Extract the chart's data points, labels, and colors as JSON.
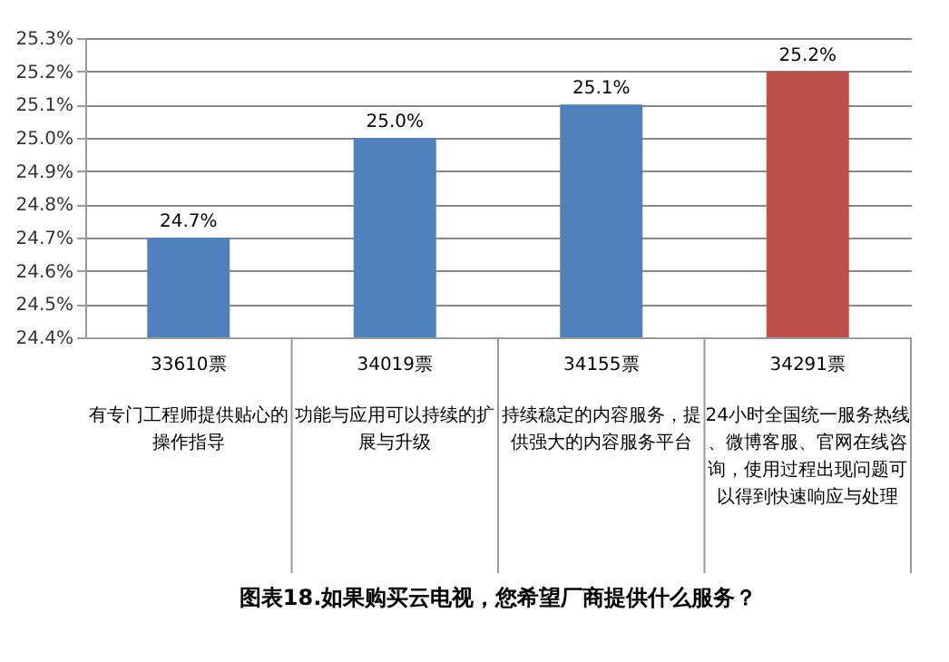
{
  "chart_data": {
    "type": "bar",
    "title": "图表18.如果购买云电视，您希望厂商提供什么服务？",
    "categories": [
      "有专门工程师提供贴心的操作指导",
      "功能与应用可以持续的扩展与升级",
      "持续稳定的内容服务，提供强大的内容服务平台",
      "24小时全国统一服务热线、微博客服、官网在线咨询，使用过程出现问题可以得到快速响应与处理"
    ],
    "annotations": [
      "33610票",
      "34019票",
      "34155票",
      "34291票"
    ],
    "values": [
      24.7,
      25.0,
      25.1,
      25.2
    ],
    "colors": [
      "#4f81bd",
      "#4f81bd",
      "#4f81bd",
      "#c0504d"
    ],
    "value_labels": [
      "24.7%",
      "25.0%",
      "25.1%",
      "25.2%"
    ],
    "ylim": [
      24.4,
      25.3
    ],
    "yticks": [
      {
        "value": 24.4,
        "label": "24.4%"
      },
      {
        "value": 24.5,
        "label": "24.5%"
      },
      {
        "value": 24.6,
        "label": "24.6%"
      },
      {
        "value": 24.7,
        "label": "24.7%"
      },
      {
        "value": 24.8,
        "label": "24.8%"
      },
      {
        "value": 24.9,
        "label": "24.9%"
      },
      {
        "value": 25.0,
        "label": "25.0%"
      },
      {
        "value": 25.1,
        "label": "25.1%"
      },
      {
        "value": 25.2,
        "label": "25.2%"
      },
      {
        "value": 25.3,
        "label": "25.3%"
      }
    ],
    "grid": "y"
  }
}
